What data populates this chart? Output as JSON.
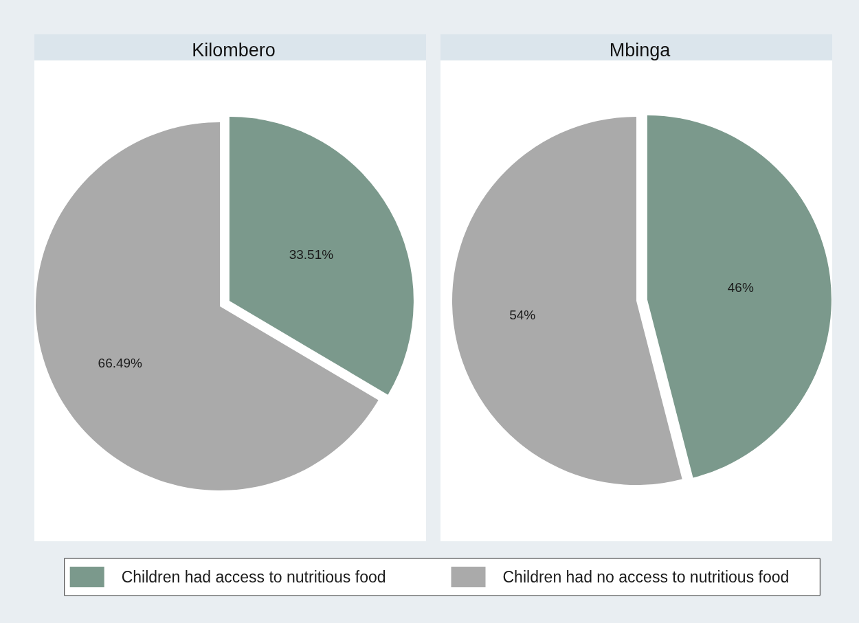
{
  "chart_data": [
    {
      "type": "pie",
      "title": "Kilombero",
      "categories": [
        "Children had access to nutritious food",
        "Children had no access to nutritious food"
      ],
      "values": [
        33.51,
        66.49
      ],
      "colors": [
        "#7b998c",
        "#aaaaaa"
      ],
      "value_labels": [
        "33.51%",
        "66.49%"
      ],
      "legend": "bottom"
    },
    {
      "type": "pie",
      "title": "Mbinga",
      "categories": [
        null,
        null
      ],
      "values": [
        46,
        54
      ],
      "colors": [
        "#7b998c",
        "#aaaaaa"
      ],
      "value_labels": [
        "46%",
        "54%"
      ]
    }
  ]
}
